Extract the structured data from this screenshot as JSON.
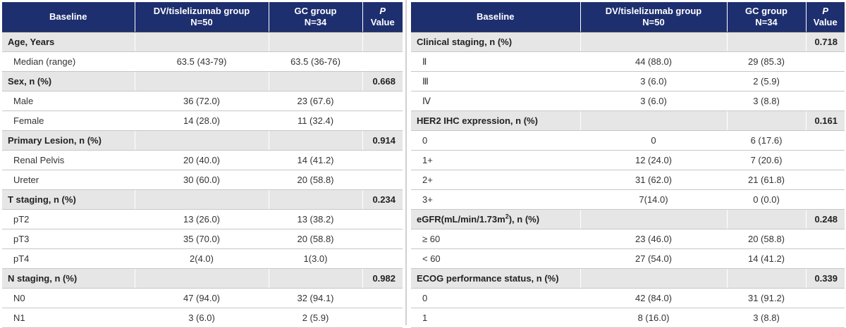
{
  "left_table": {
    "headers": {
      "baseline": "Baseline",
      "dv_line1": "DV/tislelizumab group",
      "dv_line2": "N=50",
      "gc_line1": "GC group",
      "gc_line2": "N=34",
      "p_line1": "P",
      "p_line2": "Value"
    },
    "rows": [
      {
        "kind": "section",
        "label": "Age, Years",
        "dv": "",
        "gc": "",
        "p": ""
      },
      {
        "kind": "item",
        "label": "Median (range)",
        "dv": "63.5 (43-79)",
        "gc": "63.5 (36-76)",
        "p": ""
      },
      {
        "kind": "section",
        "label": "Sex, n (%)",
        "dv": "",
        "gc": "",
        "p": "0.668"
      },
      {
        "kind": "item",
        "label": "Male",
        "dv": "36 (72.0)",
        "gc": "23 (67.6)",
        "p": ""
      },
      {
        "kind": "item",
        "label": "Female",
        "dv": "14 (28.0)",
        "gc": "11 (32.4)",
        "p": ""
      },
      {
        "kind": "section",
        "label": "Primary Lesion, n (%)",
        "dv": "",
        "gc": "",
        "p": "0.914"
      },
      {
        "kind": "item",
        "label": "Renal Pelvis",
        "dv": "20 (40.0)",
        "gc": "14 (41.2)",
        "p": ""
      },
      {
        "kind": "item",
        "label": "Ureter",
        "dv": "30 (60.0)",
        "gc": "20 (58.8)",
        "p": ""
      },
      {
        "kind": "section",
        "label": "T staging, n (%)",
        "dv": "",
        "gc": "",
        "p": "0.234"
      },
      {
        "kind": "item",
        "label": "pT2",
        "dv": "13 (26.0)",
        "gc": "13 (38.2)",
        "p": ""
      },
      {
        "kind": "item",
        "label": "pT3",
        "dv": "35 (70.0)",
        "gc": "20 (58.8)",
        "p": ""
      },
      {
        "kind": "item",
        "label": "pT4",
        "dv": "2(4.0)",
        "gc": "1(3.0)",
        "p": ""
      },
      {
        "kind": "section",
        "label": "N staging, n (%)",
        "dv": "",
        "gc": "",
        "p": "0.982"
      },
      {
        "kind": "item",
        "label": "N0",
        "dv": "47 (94.0)",
        "gc": "32 (94.1)",
        "p": ""
      },
      {
        "kind": "item",
        "label": "N1",
        "dv": "3 (6.0)",
        "gc": "2 (5.9)",
        "p": ""
      }
    ]
  },
  "right_table": {
    "headers": {
      "baseline": "Baseline",
      "dv_line1": "DV/tislelizumab group",
      "dv_line2": "N=50",
      "gc_line1": "GC  group",
      "gc_line2": "N=34",
      "p_line1": "P",
      "p_line2": "Value"
    },
    "rows": [
      {
        "kind": "section",
        "label": "Clinical staging, n (%)",
        "dv": "",
        "gc": "",
        "p": "0.718"
      },
      {
        "kind": "item",
        "label": "Ⅱ",
        "dv": "44 (88.0)",
        "gc": "29 (85.3)",
        "p": ""
      },
      {
        "kind": "item",
        "label": "Ⅲ",
        "dv": "3 (6.0)",
        "gc": "2 (5.9)",
        "p": ""
      },
      {
        "kind": "item",
        "label": "Ⅳ",
        "dv": "3 (6.0)",
        "gc": "3 (8.8)",
        "p": ""
      },
      {
        "kind": "section",
        "label": "HER2 IHC expression, n (%)",
        "dv": "",
        "gc": "",
        "p": "0.161"
      },
      {
        "kind": "item",
        "label": "0",
        "dv": "0",
        "gc": "6 (17.6)",
        "p": ""
      },
      {
        "kind": "item",
        "label": "1+",
        "dv": "12 (24.0)",
        "gc": "7 (20.6)",
        "p": ""
      },
      {
        "kind": "item",
        "label": "2+",
        "dv": "31 (62.0)",
        "gc": "21 (61.8)",
        "p": ""
      },
      {
        "kind": "item",
        "label": "3+",
        "dv": "7(14.0)",
        "gc": "0 (0.0)",
        "p": ""
      },
      {
        "kind": "section",
        "label": "eGFR(mL/min/1.73m",
        "sup": "2",
        "label_suffix": "), n (%)",
        "dv": "",
        "gc": "",
        "p": "0.248"
      },
      {
        "kind": "item",
        "label": "≥  60",
        "dv": "23 (46.0)",
        "gc": "20 (58.8)",
        "p": ""
      },
      {
        "kind": "item",
        "label": "< 60",
        "dv": "27 (54.0)",
        "gc": "14 (41.2)",
        "p": ""
      },
      {
        "kind": "section",
        "label": "ECOG performance status, n (%)",
        "dv": "",
        "gc": "",
        "p": "0.339"
      },
      {
        "kind": "item",
        "label": "0",
        "dv": "42 (84.0)",
        "gc": "31 (91.2)",
        "p": ""
      },
      {
        "kind": "item",
        "label": "1",
        "dv": "8 (16.0)",
        "gc": "3 (8.8)",
        "p": ""
      }
    ]
  }
}
